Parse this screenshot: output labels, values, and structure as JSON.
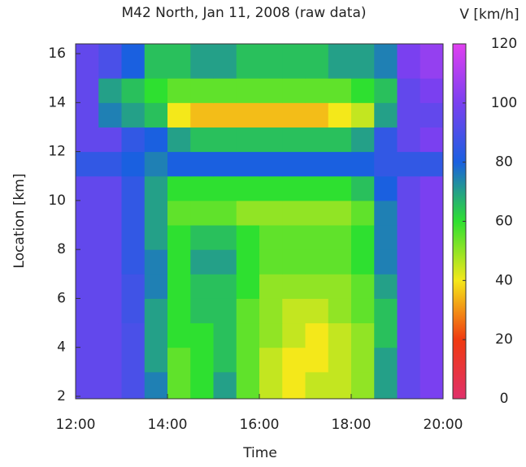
{
  "chart_data": {
    "type": "heatmap",
    "title": "M42 North, Jan 11, 2008 (raw data)",
    "xlabel": "Time",
    "ylabel": "Location [km]",
    "colorbar_label": "V [km/h]",
    "xlim": [
      12,
      20
    ],
    "xticks": [
      {
        "value": 12,
        "label": "12:00"
      },
      {
        "value": 14,
        "label": "14:00"
      },
      {
        "value": 16,
        "label": "16:00"
      },
      {
        "value": 18,
        "label": "18:00"
      },
      {
        "value": 20,
        "label": "20:00"
      }
    ],
    "ylim": [
      1.9,
      16.4
    ],
    "yticks": [
      2,
      4,
      6,
      8,
      10,
      12,
      14,
      16
    ],
    "zlim": [
      0,
      120
    ],
    "zticks": [
      0,
      20,
      40,
      60,
      80,
      100,
      120
    ],
    "colorscale": [
      [
        0,
        "#e0306a"
      ],
      [
        20,
        "#f03a10"
      ],
      [
        40,
        "#f4e81a"
      ],
      [
        60,
        "#2ee030"
      ],
      [
        80,
        "#1a60e0"
      ],
      [
        100,
        "#7a40f0"
      ],
      [
        120,
        "#e040f0"
      ]
    ],
    "x_edges": [
      12,
      12.5,
      13,
      13.5,
      14,
      14.5,
      15,
      15.5,
      16,
      16.5,
      17,
      17.5,
      18,
      18.5,
      19,
      19.5,
      20
    ],
    "y_edges": [
      1.9,
      3,
      4,
      5,
      6,
      7,
      8,
      9,
      10,
      11,
      12,
      13,
      14,
      15,
      16.4
    ],
    "z": [
      [
        95,
        95,
        90,
        75,
        55,
        60,
        70,
        55,
        45,
        40,
        45,
        45,
        50,
        70,
        95,
        100
      ],
      [
        95,
        95,
        90,
        70,
        55,
        60,
        65,
        55,
        45,
        40,
        40,
        45,
        50,
        70,
        95,
        100
      ],
      [
        95,
        95,
        90,
        70,
        60,
        60,
        65,
        55,
        50,
        45,
        40,
        45,
        50,
        65,
        95,
        100
      ],
      [
        95,
        95,
        88,
        70,
        60,
        65,
        65,
        55,
        50,
        45,
        45,
        50,
        55,
        65,
        95,
        100
      ],
      [
        95,
        95,
        88,
        75,
        60,
        65,
        65,
        60,
        50,
        50,
        50,
        50,
        55,
        70,
        95,
        100
      ],
      [
        95,
        95,
        85,
        75,
        60,
        70,
        70,
        60,
        55,
        55,
        55,
        55,
        60,
        75,
        95,
        100
      ],
      [
        95,
        95,
        85,
        70,
        60,
        65,
        65,
        60,
        55,
        55,
        55,
        55,
        60,
        75,
        95,
        100
      ],
      [
        95,
        95,
        85,
        70,
        55,
        55,
        55,
        50,
        50,
        50,
        50,
        50,
        55,
        75,
        95,
        100
      ],
      [
        95,
        95,
        85,
        70,
        60,
        60,
        60,
        60,
        60,
        60,
        60,
        60,
        65,
        80,
        95,
        100
      ],
      [
        85,
        85,
        80,
        75,
        80,
        80,
        80,
        80,
        80,
        80,
        80,
        80,
        80,
        85,
        85,
        85
      ],
      [
        95,
        95,
        85,
        80,
        70,
        65,
        65,
        65,
        65,
        65,
        65,
        65,
        70,
        85,
        95,
        100
      ],
      [
        95,
        75,
        70,
        65,
        40,
        35,
        35,
        35,
        35,
        35,
        35,
        40,
        45,
        70,
        95,
        95
      ],
      [
        95,
        70,
        65,
        60,
        55,
        55,
        55,
        55,
        55,
        55,
        55,
        55,
        60,
        65,
        95,
        100
      ],
      [
        95,
        90,
        80,
        65,
        65,
        70,
        70,
        65,
        65,
        65,
        65,
        70,
        70,
        75,
        100,
        105
      ]
    ]
  }
}
